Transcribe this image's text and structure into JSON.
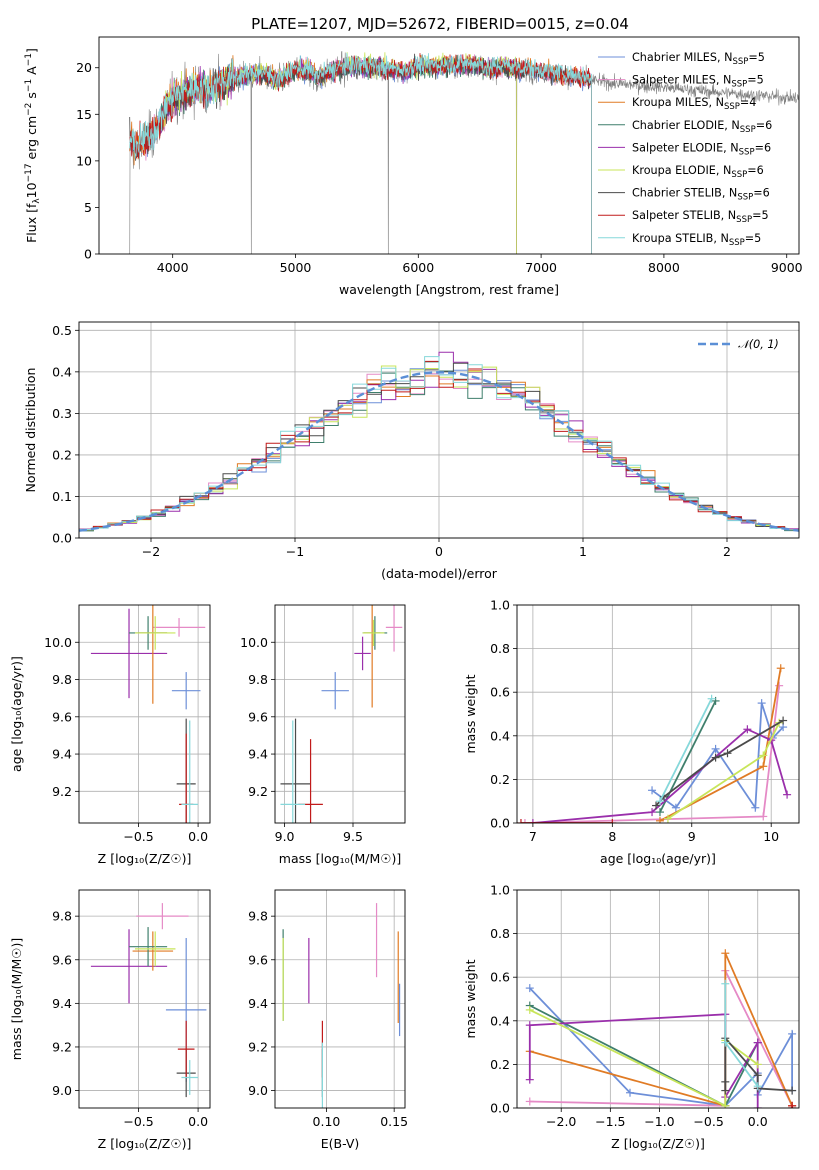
{
  "figure": {
    "title": "PLATE=1207, MJD=52672, FIBERID=0015, z=0.04"
  },
  "colors": {
    "Chabrier MILES": "#6d8fd8",
    "Salpeter MILES": "#e58ac6",
    "Kroupa MILES": "#e07b25",
    "Chabrier ELODIE": "#3f7f6c",
    "Salpeter ELODIE": "#9a2fab",
    "Kroupa ELODIE": "#c8e55a",
    "Chabrier STELIB": "#4b4b4b",
    "Salpeter STELIB": "#c11b1b",
    "Kroupa STELIB": "#86d8da",
    "data": "#808080",
    "normal": "#5b8fd6"
  },
  "chart_data": [
    {
      "id": "spectrum",
      "type": "line",
      "xlabel": "wavelength [Angstrom, rest frame]",
      "ylabel": "Flux [f$_\\lambda$10$^{-17}$ erg cm$^{-2}$ s$^{-1}$ A$^{-1}$]",
      "ylabel_parts": [
        "Flux [f",
        "λ",
        "10",
        "−17",
        " erg cm",
        "−2",
        " s",
        "−1",
        " A",
        "−1",
        "]"
      ],
      "xlim": [
        3400,
        9100
      ],
      "ylim": [
        0,
        23.3
      ],
      "xticks": [
        4000,
        5000,
        6000,
        7000,
        8000,
        9000
      ],
      "yticks": [
        0,
        5,
        10,
        15,
        20
      ],
      "legend_position": "upper right",
      "series": [
        {
          "name": "Chabrier MILES",
          "nssp": "5",
          "xrange": [
            3650,
            7410
          ]
        },
        {
          "name": "Salpeter MILES",
          "nssp": "5",
          "xrange": [
            3650,
            7410
          ]
        },
        {
          "name": "Kroupa MILES",
          "nssp": "4",
          "xrange": [
            3650,
            7410
          ]
        },
        {
          "name": "Chabrier ELODIE",
          "nssp": "6",
          "xrange": [
            3900,
            6800
          ]
        },
        {
          "name": "Salpeter ELODIE",
          "nssp": "6",
          "xrange": [
            3900,
            6800
          ]
        },
        {
          "name": "Kroupa ELODIE",
          "nssp": "6",
          "xrange": [
            3900,
            6800
          ]
        },
        {
          "name": "Chabrier STELIB",
          "nssp": "6",
          "xrange": [
            3650,
            7410
          ]
        },
        {
          "name": "Salpeter STELIB",
          "nssp": "5",
          "xrange": [
            3650,
            7410
          ]
        },
        {
          "name": "Kroupa STELIB",
          "nssp": "5",
          "xrange": [
            3650,
            7410
          ]
        }
      ],
      "data_series": {
        "name": "data",
        "xrange": [
          3650,
          9100
        ]
      },
      "continuum": [
        [
          3650,
          12
        ],
        [
          3700,
          11.3
        ],
        [
          3750,
          11.8
        ],
        [
          3800,
          12.4
        ],
        [
          3860,
          13.1
        ],
        [
          3900,
          14.2
        ],
        [
          3950,
          15.8
        ],
        [
          4000,
          16.6
        ],
        [
          4100,
          17.2
        ],
        [
          4200,
          17.7
        ],
        [
          4300,
          17.4
        ],
        [
          4400,
          18.3
        ],
        [
          4500,
          18.7
        ],
        [
          4700,
          19.3
        ],
        [
          4861,
          18.6
        ],
        [
          5000,
          19.7
        ],
        [
          5100,
          19.6
        ],
        [
          5175,
          18.8
        ],
        [
          5300,
          19.6
        ],
        [
          5500,
          20.1
        ],
        [
          5890,
          19.5
        ],
        [
          6000,
          20.0
        ],
        [
          6200,
          20.1
        ],
        [
          6500,
          20.2
        ],
        [
          6563,
          19.7
        ],
        [
          6700,
          20.0
        ],
        [
          7000,
          19.5
        ],
        [
          7200,
          19.1
        ],
        [
          7400,
          18.7
        ],
        [
          7600,
          18.3
        ],
        [
          8000,
          17.9
        ],
        [
          8400,
          17.4
        ],
        [
          8800,
          17.0
        ],
        [
          9100,
          16.7
        ]
      ]
    },
    {
      "id": "residuals",
      "type": "histogram",
      "xlabel": "(data-model)/error",
      "ylabel": "Normed distribution",
      "xlim": [
        -2.5,
        2.5
      ],
      "ylim": [
        0,
        0.52
      ],
      "xticks": [
        -2,
        -1,
        0,
        1,
        2
      ],
      "xticklabels": [
        "−2",
        "−1",
        "0",
        "1",
        "2"
      ],
      "yticks": [
        0.0,
        0.1,
        0.2,
        0.3,
        0.4,
        0.5
      ],
      "yticklabels": [
        "0.0",
        "0.1",
        "0.2",
        "0.3",
        "0.4",
        "0.5"
      ],
      "grid": true,
      "legend": "𝒩(0, 1)",
      "bin_edges": [
        -2.6,
        2.6
      ],
      "bin_count": 52,
      "gauss_sigma": 1.0,
      "note_normal": "dashed standard normal curve"
    },
    {
      "id": "age_vs_Z",
      "type": "scatter",
      "xlabel": "Z [log₁₀(Z/Z☉)]",
      "ylabel": "age  [log₁₀(age/yr)]",
      "xlim": [
        -1.0,
        0.1
      ],
      "ylim": [
        9.03,
        10.2
      ],
      "xticks": [
        -0.5,
        0.0
      ],
      "xticklabels": [
        "−0.5",
        "0.0"
      ],
      "yticks": [
        9.2,
        9.4,
        9.6,
        9.8,
        10.0
      ],
      "yticklabels": [
        "9.2",
        "9.4",
        "9.6",
        "9.8",
        "10.0"
      ],
      "points": [
        {
          "series": "Salpeter ELODIE",
          "x": -0.58,
          "xerr": 0.32,
          "y": 9.94,
          "yerr": 0.24
        },
        {
          "series": "Salpeter MILES",
          "x": -0.16,
          "xerr": 0.22,
          "y": 10.08,
          "yerr": 0.05
        },
        {
          "series": "Chabrier MILES",
          "x": -0.1,
          "xerr": 0.12,
          "y": 9.74,
          "yerr": 0.1
        },
        {
          "series": "Kroupa MILES",
          "x": -0.38,
          "xerr": 0.12,
          "y": 10.05,
          "yerr": 0.38
        },
        {
          "series": "Chabrier ELODIE",
          "x": -0.42,
          "xerr": 0.16,
          "y": 10.05,
          "yerr": 0.09
        },
        {
          "series": "Kroupa ELODIE",
          "x": -0.36,
          "xerr": 0.17,
          "y": 10.05,
          "yerr": 0.09
        },
        {
          "series": "Chabrier STELIB",
          "x": -0.1,
          "xerr": 0.08,
          "y": 9.24,
          "yerr": 0.35
        },
        {
          "series": "Salpeter STELIB",
          "x": -0.1,
          "xerr": 0.06,
          "y": 9.13,
          "yerr": 0.38
        },
        {
          "series": "Kroupa STELIB",
          "x": -0.07,
          "xerr": 0.07,
          "y": 9.13,
          "yerr": 0.45
        }
      ]
    },
    {
      "id": "age_vs_mass",
      "type": "scatter",
      "xlabel": "mass [log₁₀(M/M☉)]",
      "ylabel": "",
      "xlim": [
        8.93,
        9.88
      ],
      "ylim": [
        9.03,
        10.2
      ],
      "xticks": [
        9.0,
        9.5
      ],
      "xticklabels": [
        "9.0",
        "9.5"
      ],
      "yticks": [
        9.2,
        9.4,
        9.6,
        9.8,
        10.0
      ],
      "yticklabels": [
        "9.2",
        "9.4",
        "9.6",
        "9.8",
        "10.0"
      ],
      "points": [
        {
          "series": "Salpeter MILES",
          "x": 9.8,
          "xerr": 0.06,
          "y": 10.08,
          "yerr": 0.13
        },
        {
          "series": "Chabrier MILES",
          "x": 9.37,
          "xerr": 0.1,
          "y": 9.74,
          "yerr": 0.1
        },
        {
          "series": "Kroupa MILES",
          "x": 9.64,
          "xerr": 0.06,
          "y": 10.05,
          "yerr": 0.4
        },
        {
          "series": "Chabrier ELODIE",
          "x": 9.66,
          "xerr": 0.09,
          "y": 10.05,
          "yerr": 0.09
        },
        {
          "series": "Salpeter ELODIE",
          "x": 9.57,
          "xerr": 0.06,
          "y": 9.94,
          "yerr": 0.09
        },
        {
          "series": "Kroupa ELODIE",
          "x": 9.65,
          "xerr": 0.08,
          "y": 10.05,
          "yerr": 0.07
        },
        {
          "series": "Chabrier STELIB",
          "x": 9.08,
          "xerr": 0.11,
          "y": 9.24,
          "yerr": 0.35
        },
        {
          "series": "Salpeter STELIB",
          "x": 9.19,
          "xerr": 0.09,
          "y": 9.13,
          "yerr": 0.35
        },
        {
          "series": "Kroupa STELIB",
          "x": 9.06,
          "xerr": 0.09,
          "y": 9.13,
          "yerr": 0.45
        }
      ]
    },
    {
      "id": "massweight_vs_age",
      "type": "line",
      "xlabel": "age  [log₁₀(age/yr)]",
      "ylabel": "mass weight",
      "xlim": [
        6.8,
        10.35
      ],
      "ylim": [
        0,
        1.0
      ],
      "xticks": [
        7,
        8,
        9,
        10
      ],
      "xticklabels": [
        "7",
        "8",
        "9",
        "10"
      ],
      "yticks": [
        0,
        0.2,
        0.4,
        0.6,
        0.8,
        1.0
      ],
      "yticklabels": [
        "0.0",
        "0.2",
        "0.4",
        "0.6",
        "0.8",
        "1.0"
      ],
      "grid": true,
      "series": [
        {
          "name": "Chabrier MILES",
          "x": [
            8.5,
            8.8,
            9.3,
            9.8,
            9.88,
            10.02,
            10.15
          ],
          "y": [
            0.15,
            0.07,
            0.34,
            0.07,
            0.55,
            0.39,
            0.44
          ]
        },
        {
          "name": "Salpeter MILES",
          "x": [
            6.9,
            9.9,
            10.1
          ],
          "y": [
            0.0,
            0.03,
            0.63
          ]
        },
        {
          "name": "Kroupa MILES",
          "x": [
            8.6,
            9.9,
            10.12
          ],
          "y": [
            0.01,
            0.26,
            0.71
          ]
        },
        {
          "name": "Chabrier ELODIE",
          "x": [
            8.6,
            9.3
          ],
          "y": [
            0.05,
            0.56
          ]
        },
        {
          "name": "Salpeter ELODIE",
          "x": [
            7.0,
            8.5,
            9.7,
            10.0,
            10.2
          ],
          "y": [
            0.0,
            0.05,
            0.43,
            0.38,
            0.13
          ]
        },
        {
          "name": "Kroupa ELODIE",
          "x": [
            8.7,
            9.9,
            10.1
          ],
          "y": [
            0.02,
            0.31,
            0.46
          ]
        },
        {
          "name": "Chabrier STELIB",
          "x": [
            8.55,
            8.65,
            9.3,
            9.45,
            10.15
          ],
          "y": [
            0.08,
            0.12,
            0.3,
            0.32,
            0.47
          ]
        },
        {
          "name": "Salpeter STELIB",
          "x": [
            6.85,
            8.0
          ],
          "y": [
            0.0,
            0.0
          ]
        },
        {
          "name": "Kroupa STELIB",
          "x": [
            8.6,
            9.25
          ],
          "y": [
            0.1,
            0.57
          ]
        }
      ]
    },
    {
      "id": "mass_vs_Z",
      "type": "scatter",
      "xlabel": "Z [log₁₀(Z/Z☉)]",
      "ylabel": "mass [log₁₀(M/M☉)]",
      "xlim": [
        -1.0,
        0.1
      ],
      "ylim": [
        8.92,
        9.92
      ],
      "xticks": [
        -0.5,
        0.0
      ],
      "xticklabels": [
        "−0.5",
        "0.0"
      ],
      "yticks": [
        9.0,
        9.2,
        9.4,
        9.6,
        9.8
      ],
      "yticklabels": [
        "9.0",
        "9.2",
        "9.4",
        "9.6",
        "9.8"
      ],
      "points": [
        {
          "series": "Salpeter ELODIE",
          "x": -0.58,
          "xerr": 0.32,
          "y": 9.57,
          "yerr": 0.17
        },
        {
          "series": "Salpeter MILES",
          "x": -0.3,
          "xerr": 0.22,
          "y": 9.8,
          "yerr": 0.06
        },
        {
          "series": "Chabrier MILES",
          "x": -0.1,
          "xerr": 0.17,
          "y": 9.37,
          "yerr": 0.33
        },
        {
          "series": "Kroupa MILES",
          "x": -0.38,
          "xerr": 0.17,
          "y": 9.64,
          "yerr": 0.09
        },
        {
          "series": "Chabrier ELODIE",
          "x": -0.42,
          "xerr": 0.16,
          "y": 9.66,
          "yerr": 0.09
        },
        {
          "series": "Kroupa ELODIE",
          "x": -0.36,
          "xerr": 0.17,
          "y": 9.65,
          "yerr": 0.08
        },
        {
          "series": "Chabrier STELIB",
          "x": -0.1,
          "xerr": 0.08,
          "y": 9.08,
          "yerr": 0.11
        },
        {
          "series": "Salpeter STELIB",
          "x": -0.1,
          "xerr": 0.07,
          "y": 9.19,
          "yerr": 0.13
        },
        {
          "series": "Kroupa STELIB",
          "x": -0.07,
          "xerr": 0.07,
          "y": 9.06,
          "yerr": 0.08
        }
      ]
    },
    {
      "id": "mass_vs_ebv",
      "type": "scatter",
      "xlabel": "E(B-V)",
      "ylabel": "",
      "xlim": [
        0.062,
        0.158
      ],
      "ylim": [
        8.92,
        9.92
      ],
      "xticks": [
        0.1,
        0.15
      ],
      "xticklabels": [
        "0.10",
        "0.15"
      ],
      "yticks": [
        9.0,
        9.2,
        9.4,
        9.6,
        9.8
      ],
      "yticklabels": [
        "9.0",
        "9.2",
        "9.4",
        "9.6",
        "9.8"
      ],
      "points": [
        {
          "series": "Salpeter MILES",
          "x": 0.137,
          "xerr": 0,
          "y": 9.69,
          "yerr": 0.17
        },
        {
          "series": "Chabrier MILES",
          "x": 0.154,
          "xerr": 0,
          "y": 9.37,
          "yerr": 0.12
        },
        {
          "series": "Kroupa MILES",
          "x": 0.153,
          "xerr": 0,
          "y": 9.52,
          "yerr": 0.21
        },
        {
          "series": "Chabrier ELODIE",
          "x": 0.068,
          "xerr": 0,
          "y": 9.53,
          "yerr": 0.21
        },
        {
          "series": "Salpeter ELODIE",
          "x": 0.087,
          "xerr": 0,
          "y": 9.55,
          "yerr": 0.15
        },
        {
          "series": "Kroupa ELODIE",
          "x": 0.068,
          "xerr": 0,
          "y": 9.51,
          "yerr": 0.19
        },
        {
          "series": "Chabrier STELIB",
          "x": 0.097,
          "xerr": 0,
          "y": 9.08,
          "yerr": 0.11
        },
        {
          "series": "Salpeter STELIB",
          "x": 0.097,
          "xerr": 0,
          "y": 9.19,
          "yerr": 0.13
        },
        {
          "series": "Kroupa STELIB",
          "x": 0.097,
          "xerr": 0,
          "y": 9.06,
          "yerr": 0.16
        }
      ]
    },
    {
      "id": "massweight_vs_Z",
      "type": "line",
      "xlabel": "Z [log₁₀(Z/Z☉)]",
      "ylabel": "mass weight",
      "xlim": [
        -2.45,
        0.42
      ],
      "ylim": [
        0,
        1.0
      ],
      "xticks": [
        -2.0,
        -1.5,
        -1.0,
        -0.5,
        0.0
      ],
      "xticklabels": [
        "−2.0",
        "−1.5",
        "−1.0",
        "−0.5",
        "0.0"
      ],
      "yticks": [
        0,
        0.2,
        0.4,
        0.6,
        0.8,
        1.0
      ],
      "yticklabels": [
        "0.0",
        "0.2",
        "0.4",
        "0.6",
        "0.8",
        "1.0"
      ],
      "grid": true,
      "series": [
        {
          "name": "Chabrier MILES",
          "x": [
            -2.32,
            -1.3,
            -0.33,
            0.0,
            0.0,
            0.35,
            0.35
          ],
          "y": [
            0.55,
            0.07,
            0.01,
            0.16,
            0.06,
            0.34,
            0.08
          ]
        },
        {
          "name": "Salpeter MILES",
          "x": [
            -2.32,
            -0.33,
            -0.33,
            0.35
          ],
          "y": [
            0.03,
            0.01,
            0.63,
            0.01
          ]
        },
        {
          "name": "Kroupa MILES",
          "x": [
            -2.32,
            -0.33,
            -0.33,
            0.35
          ],
          "y": [
            0.26,
            0.01,
            0.71,
            0.01
          ]
        },
        {
          "name": "Chabrier ELODIE",
          "x": [
            -2.32,
            -0.33,
            0.0
          ],
          "y": [
            0.47,
            0.01,
            0.3
          ]
        },
        {
          "name": "Salpeter ELODIE",
          "x": [
            -2.32,
            -2.32,
            -0.33,
            -0.33,
            0.0,
            0.0
          ],
          "y": [
            0.13,
            0.38,
            0.43,
            0.05,
            0.3,
            0.0
          ]
        },
        {
          "name": "Kroupa ELODIE",
          "x": [
            -2.32,
            -0.33,
            -0.33,
            0.0
          ],
          "y": [
            0.45,
            0.01,
            0.31,
            0.2
          ]
        },
        {
          "name": "Chabrier STELIB",
          "x": [
            -0.33,
            -0.33,
            -0.33,
            0.0,
            0.0,
            0.35
          ],
          "y": [
            0.08,
            0.12,
            0.32,
            0.15,
            0.09,
            0.08
          ]
        },
        {
          "name": "Salpeter STELIB",
          "x": [
            0.35,
            0.35
          ],
          "y": [
            0.0,
            0.01
          ]
        },
        {
          "name": "Kroupa STELIB",
          "x": [
            -0.33,
            -0.33,
            0.0
          ],
          "y": [
            0.57,
            0.3,
            0.1
          ]
        }
      ]
    }
  ]
}
